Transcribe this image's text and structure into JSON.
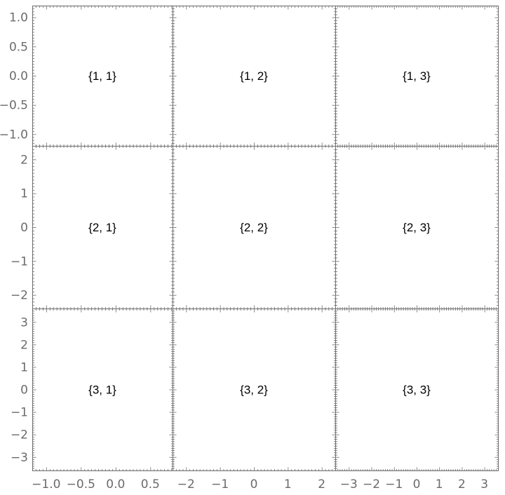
{
  "chart_data": {
    "type": "grid",
    "rows": 3,
    "cols": 3,
    "axis_color": "#6b6b6b",
    "label_color": "#000000",
    "col_x": [
      {
        "xlim": [
          -1.2,
          0.82
        ],
        "ticks": [
          -1.0,
          -0.5,
          0.0,
          0.5
        ],
        "tick_labels": [
          "−1.0",
          "−0.5",
          "0.0",
          "0.5"
        ],
        "minor_step": 0.05
      },
      {
        "xlim": [
          -2.4,
          2.4
        ],
        "ticks": [
          -2,
          -1,
          0,
          1,
          2
        ],
        "tick_labels": [
          "−2",
          "−1",
          "0",
          "1",
          "2"
        ],
        "minor_step": 0.1
      },
      {
        "xlim": [
          -3.6,
          3.6
        ],
        "ticks": [
          -3,
          -2,
          -1,
          0,
          1,
          2,
          3
        ],
        "tick_labels": [
          "−3",
          "−2",
          "−1",
          "0",
          "1",
          "2",
          "3"
        ],
        "minor_step": 0.1
      }
    ],
    "row_y": [
      {
        "ylim": [
          -1.2,
          1.2
        ],
        "ticks": [
          1.0,
          0.5,
          0.0,
          -0.5,
          -1.0
        ],
        "tick_labels": [
          "1.0",
          "0.5",
          "0.0",
          "−0.5",
          "−1.0"
        ],
        "minor_step": 0.05
      },
      {
        "ylim": [
          -2.4,
          2.4
        ],
        "ticks": [
          2,
          1,
          0,
          -1,
          -2
        ],
        "tick_labels": [
          "2",
          "1",
          "0",
          "−1",
          "−2"
        ],
        "minor_step": 0.1
      },
      {
        "ylim": [
          -3.6,
          3.6
        ],
        "ticks": [
          3,
          2,
          1,
          0,
          -1,
          -2,
          -3
        ],
        "tick_labels": [
          "3",
          "2",
          "1",
          "0",
          "−1",
          "−2",
          "−3"
        ],
        "minor_step": 0.1
      }
    ],
    "panels": [
      {
        "row": 1,
        "col": 1,
        "label": "{1, 1}"
      },
      {
        "row": 1,
        "col": 2,
        "label": "{1, 2}"
      },
      {
        "row": 1,
        "col": 3,
        "label": "{1, 3}"
      },
      {
        "row": 2,
        "col": 1,
        "label": "{2, 1}"
      },
      {
        "row": 2,
        "col": 2,
        "label": "{2, 2}"
      },
      {
        "row": 2,
        "col": 3,
        "label": "{2, 3}"
      },
      {
        "row": 3,
        "col": 1,
        "label": "{3, 1}"
      },
      {
        "row": 3,
        "col": 2,
        "label": "{3, 2}"
      },
      {
        "row": 3,
        "col": 3,
        "label": "{3, 3}"
      }
    ]
  }
}
